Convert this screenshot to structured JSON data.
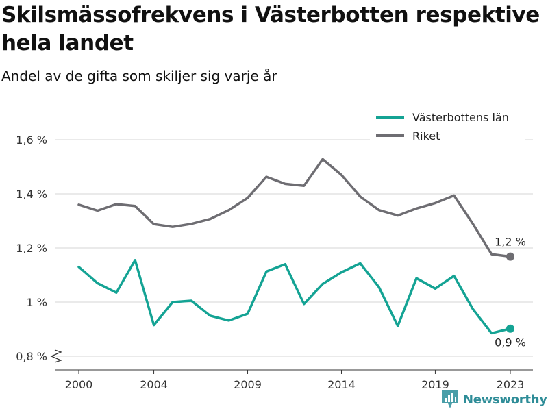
{
  "chart_data": {
    "type": "line",
    "title": "Skilsmässofrekvens i Västerbotten respektive hela landet",
    "subtitle": "Andel av de gifta som skiljer sig varje år",
    "x": [
      2000,
      2001,
      2002,
      2003,
      2004,
      2005,
      2006,
      2007,
      2008,
      2009,
      2010,
      2011,
      2012,
      2013,
      2014,
      2015,
      2016,
      2017,
      2018,
      2019,
      2020,
      2021,
      2022,
      2023
    ],
    "x_ticks": [
      2000,
      2004,
      2009,
      2014,
      2019,
      2023
    ],
    "x_tick_labels": [
      "2000",
      "2004",
      "2009",
      "2014",
      "2019",
      "2023"
    ],
    "y_ticks": [
      0.8,
      1.0,
      1.2,
      1.4,
      1.6
    ],
    "y_tick_labels": [
      "0,8 %",
      "1 %",
      "1,2 %",
      "1,4 %",
      "1,6 %"
    ],
    "ylim": [
      0.8,
      1.6
    ],
    "y_axis_break": true,
    "grid": "horizontal",
    "legend_position": "top-right",
    "series": [
      {
        "name": "Västerbottens län",
        "color": "#14a394",
        "values": [
          1.13,
          1.07,
          1.035,
          1.155,
          0.915,
          1.0,
          1.005,
          0.95,
          0.932,
          0.957,
          1.113,
          1.14,
          0.993,
          1.067,
          1.11,
          1.143,
          1.055,
          0.912,
          1.088,
          1.05,
          1.097,
          0.975,
          0.885,
          0.902
        ],
        "end_label": "0,9 %"
      },
      {
        "name": "Riket",
        "color": "#6e6d72",
        "values": [
          1.36,
          1.338,
          1.362,
          1.355,
          1.288,
          1.278,
          1.289,
          1.307,
          1.34,
          1.385,
          1.463,
          1.437,
          1.43,
          1.528,
          1.47,
          1.39,
          1.34,
          1.32,
          1.346,
          1.366,
          1.394,
          1.29,
          1.177,
          1.168
        ],
        "end_label": "1,2 %"
      }
    ]
  },
  "brand": {
    "name": "Newsworthy",
    "icon": "newsworthy-logo-icon",
    "color": "#2f8d98"
  }
}
